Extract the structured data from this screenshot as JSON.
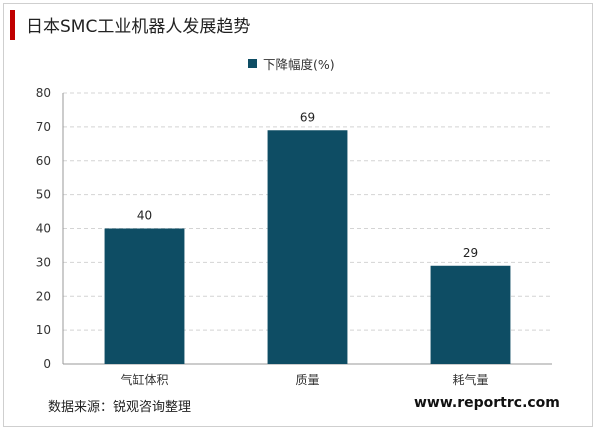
{
  "title": "日本SMC工业机器人发展趋势",
  "source": "数据来源：锐观咨询整理",
  "website": "www.reportrc.com",
  "colors": {
    "bar": "#0e4d64",
    "accent": "#c00000"
  },
  "chart_data": {
    "type": "bar",
    "title": "日本SMC工业机器人发展趋势",
    "categories": [
      "气缸体积",
      "质量",
      "耗气量"
    ],
    "series": [
      {
        "name": "下降幅度(%)",
        "values": [
          40,
          69,
          29
        ]
      }
    ],
    "ylim": [
      0,
      80
    ],
    "yticks": [
      0,
      10,
      20,
      30,
      40,
      50,
      60,
      70,
      80
    ],
    "grid": true,
    "legend_position": "top-center"
  }
}
